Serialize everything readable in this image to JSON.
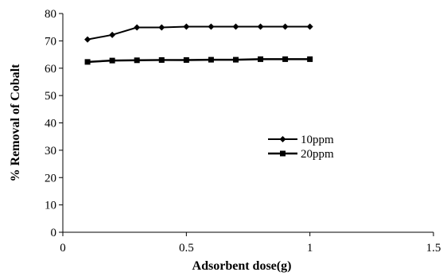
{
  "chart_data": {
    "type": "line",
    "title": "",
    "xlabel": "Adsorbent dose(g)",
    "ylabel": "% Removal of Cobalt",
    "xlim": [
      0,
      1.5
    ],
    "ylim": [
      0,
      80
    ],
    "xticks": [
      0,
      0.5,
      1,
      1.5
    ],
    "yticks": [
      0,
      10,
      20,
      30,
      40,
      50,
      60,
      70,
      80
    ],
    "grid": false,
    "legend_position": "right",
    "series": [
      {
        "name": "10ppm",
        "marker": "diamond",
        "color": "#000000",
        "x": [
          0.1,
          0.2,
          0.3,
          0.4,
          0.5,
          0.6,
          0.7,
          0.8,
          0.9,
          1.0
        ],
        "y": [
          70.5,
          72.2,
          74.9,
          74.9,
          75.2,
          75.2,
          75.2,
          75.2,
          75.2,
          75.2
        ]
      },
      {
        "name": "20ppm",
        "marker": "square",
        "color": "#000000",
        "x": [
          0.1,
          0.2,
          0.3,
          0.4,
          0.5,
          0.6,
          0.7,
          0.8,
          0.9,
          1.0
        ],
        "y": [
          62.3,
          62.8,
          62.9,
          63.0,
          63.0,
          63.1,
          63.1,
          63.3,
          63.3,
          63.3
        ]
      }
    ]
  }
}
